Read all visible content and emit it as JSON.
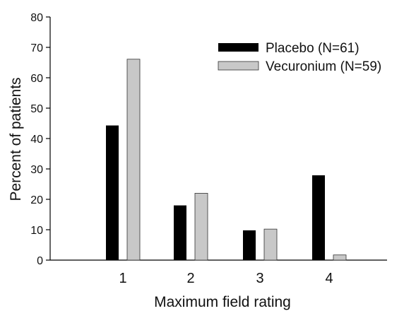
{
  "chart_data": {
    "type": "bar",
    "title": "",
    "xlabel": "Maximum field rating",
    "ylabel": "Percent of patients",
    "categories": [
      "1",
      "2",
      "3",
      "4"
    ],
    "series": [
      {
        "name": "Placebo (N=61)",
        "values": [
          44.3,
          18.0,
          9.8,
          27.9
        ],
        "color": "#000000"
      },
      {
        "name": "Vecuronium (N=59)",
        "values": [
          66.1,
          22.0,
          10.2,
          1.7
        ],
        "color": "#c8c8c8"
      }
    ],
    "ylim": [
      0,
      80
    ],
    "yticks": [
      "0",
      "10",
      "20",
      "30",
      "40",
      "50",
      "60",
      "70",
      "80"
    ],
    "grid": false,
    "legend_position": "top-right"
  }
}
